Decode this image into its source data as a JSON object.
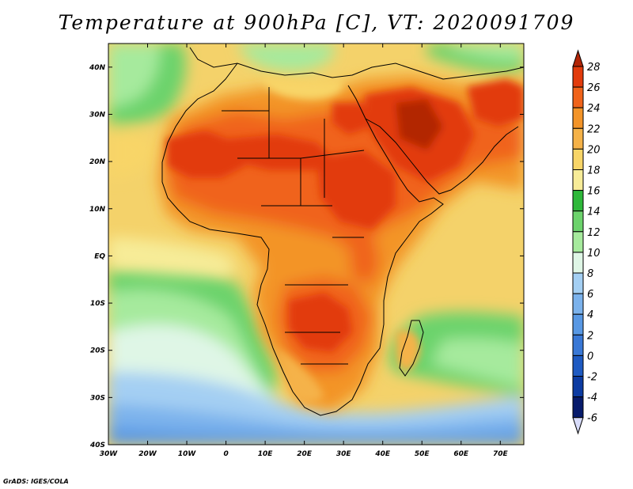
{
  "title": "Temperature at 900hPa [C], VT: 2020091709",
  "credit": "GrADS: IGES/COLA",
  "map": {
    "lon_range": [
      -30,
      76
    ],
    "lat_range": [
      -40,
      45
    ],
    "x_ticks": [
      "30W",
      "20W",
      "10W",
      "0",
      "10E",
      "20E",
      "30E",
      "40E",
      "50E",
      "60E",
      "70E"
    ],
    "y_ticks": [
      "40S",
      "30S",
      "20S",
      "10S",
      "EQ",
      "10N",
      "20N",
      "30N",
      "40N"
    ],
    "ocean_color": "#f4d26a"
  },
  "colorbar": {
    "labels": [
      "28",
      "26",
      "24",
      "22",
      "20",
      "18",
      "16",
      "14",
      "12",
      "10",
      "8",
      "6",
      "4",
      "2",
      "0",
      "-2",
      "-4",
      "-6"
    ],
    "colors": [
      "#b22506",
      "#e23b0c",
      "#f0631a",
      "#f39428",
      "#f5b248",
      "#f8d567",
      "#f7ec98",
      "#2eb83a",
      "#6cd36c",
      "#a6ea9d",
      "#dff6e6",
      "#a4cff3",
      "#7bb2ec",
      "#5898e4",
      "#3978d6",
      "#1e5ac2",
      "#0c3ba2",
      "#071b6c",
      "#d8dcfa"
    ]
  }
}
